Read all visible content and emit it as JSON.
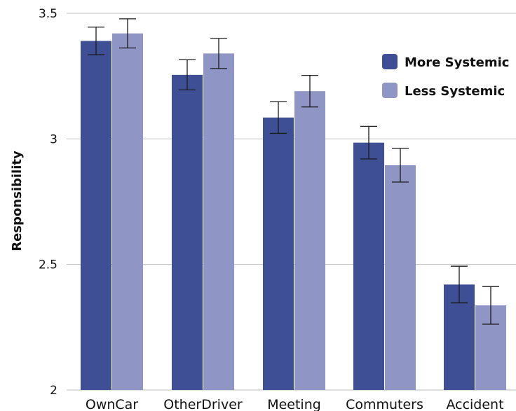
{
  "chart_data": {
    "type": "bar",
    "title": "",
    "xlabel": "",
    "ylabel": "Responsibility",
    "ylim": [
      2,
      3.5
    ],
    "yticks": [
      "2",
      "2.5",
      "3",
      "3.5"
    ],
    "grid": true,
    "legend_position": "top-right",
    "categories": [
      "OwnCar",
      "OtherDriver",
      "Meeting",
      "Commuters",
      "Accident"
    ],
    "series": [
      {
        "name": "More Systemic",
        "color": "#3f4f96",
        "values": [
          3.39,
          3.255,
          3.085,
          2.985,
          2.42
        ],
        "error": [
          0.055,
          0.06,
          0.063,
          0.065,
          0.073
        ]
      },
      {
        "name": "Less Systemic",
        "color": "#8f95c4",
        "values": [
          3.42,
          3.34,
          3.19,
          2.895,
          2.337
        ]
      }
    ],
    "error_bars_less": [
      0.058,
      0.06,
      0.063,
      0.067,
      0.075
    ]
  }
}
